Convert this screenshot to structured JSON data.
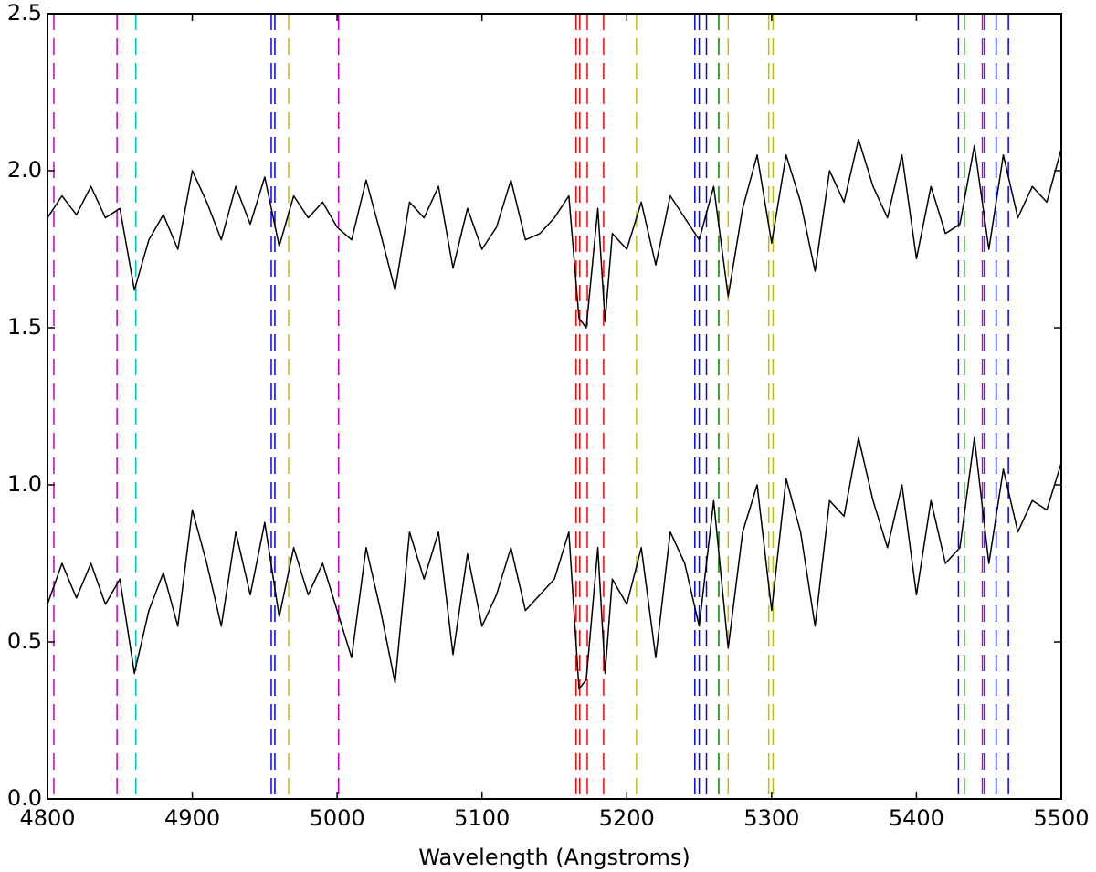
{
  "chart_data": {
    "type": "line",
    "xlabel": "Wavelength (Angstroms)",
    "xlim": [
      4800,
      5500
    ],
    "xticks": [
      4800,
      4900,
      5000,
      5100,
      5200,
      5300,
      5400,
      5500
    ],
    "ylim": [
      0,
      2.5
    ],
    "yticks": [
      {
        "value": 0,
        "label": "0.0"
      },
      0.5,
      {
        "value": 1,
        "label": "1.0"
      },
      1.5,
      {
        "value": 2,
        "label": "2.0"
      },
      2.5
    ],
    "x": [
      4800,
      4810,
      4820,
      4830,
      4840,
      4850,
      4860,
      4870,
      4880,
      4890,
      4900,
      4910,
      4920,
      4930,
      4940,
      4950,
      4960,
      4970,
      4980,
      4990,
      5000,
      5010,
      5020,
      5030,
      5040,
      5050,
      5060,
      5070,
      5080,
      5090,
      5100,
      5110,
      5120,
      5130,
      5140,
      5150,
      5160,
      5167,
      5172,
      5180,
      5185,
      5190,
      5200,
      5210,
      5220,
      5230,
      5240,
      5250,
      5260,
      5270,
      5280,
      5290,
      5300,
      5310,
      5320,
      5330,
      5340,
      5350,
      5360,
      5370,
      5380,
      5390,
      5400,
      5410,
      5420,
      5430,
      5440,
      5450,
      5460,
      5470,
      5480,
      5490,
      5500
    ],
    "series": [
      {
        "color": "#000000",
        "values": [
          1.85,
          1.92,
          1.86,
          1.95,
          1.85,
          1.88,
          1.62,
          1.78,
          1.86,
          1.75,
          2.0,
          1.9,
          1.78,
          1.95,
          1.83,
          1.98,
          1.76,
          1.92,
          1.85,
          1.9,
          1.82,
          1.78,
          1.97,
          1.8,
          1.62,
          1.9,
          1.85,
          1.95,
          1.69,
          1.88,
          1.75,
          1.82,
          1.97,
          1.78,
          1.8,
          1.85,
          1.92,
          1.53,
          1.5,
          1.88,
          1.52,
          1.8,
          1.75,
          1.9,
          1.7,
          1.92,
          1.85,
          1.78,
          1.95,
          1.6,
          1.88,
          2.05,
          1.77,
          2.05,
          1.9,
          1.68,
          2.0,
          1.9,
          2.1,
          1.95,
          1.85,
          2.05,
          1.72,
          1.95,
          1.8,
          1.83,
          2.08,
          1.75,
          2.05,
          1.85,
          1.95,
          1.9,
          2.07
        ]
      },
      {
        "color": "#000000",
        "values": [
          0.62,
          0.75,
          0.64,
          0.75,
          0.62,
          0.7,
          0.4,
          0.6,
          0.72,
          0.55,
          0.92,
          0.75,
          0.55,
          0.85,
          0.65,
          0.88,
          0.58,
          0.8,
          0.65,
          0.75,
          0.6,
          0.45,
          0.8,
          0.6,
          0.37,
          0.85,
          0.7,
          0.85,
          0.46,
          0.78,
          0.55,
          0.65,
          0.8,
          0.6,
          0.65,
          0.7,
          0.85,
          0.35,
          0.38,
          0.8,
          0.4,
          0.7,
          0.62,
          0.8,
          0.45,
          0.85,
          0.75,
          0.55,
          0.95,
          0.48,
          0.85,
          1.0,
          0.6,
          1.02,
          0.85,
          0.55,
          0.95,
          0.9,
          1.15,
          0.95,
          0.8,
          1.0,
          0.65,
          0.95,
          0.75,
          0.8,
          1.15,
          0.75,
          1.05,
          0.85,
          0.95,
          0.92,
          1.07
        ]
      }
    ],
    "vlines": [
      {
        "x": 4804.4,
        "color": "#bf00bf"
      },
      {
        "x": 4848,
        "color": "#bf00bf"
      },
      {
        "x": 4861,
        "color": "#00bfbf"
      },
      {
        "x": 4954.5,
        "color": "#0000ff"
      },
      {
        "x": 4957,
        "color": "#0000ff"
      },
      {
        "x": 4966.5,
        "color": "#bfbf00"
      },
      {
        "x": 5001,
        "color": "#bf00bf"
      },
      {
        "x": 5165,
        "color": "#ff0000"
      },
      {
        "x": 5167.5,
        "color": "#ff0000"
      },
      {
        "x": 5172.7,
        "color": "#ff0000"
      },
      {
        "x": 5184,
        "color": "#ff0000"
      },
      {
        "x": 5206.7,
        "color": "#bfbf00"
      },
      {
        "x": 5247,
        "color": "#0000ff"
      },
      {
        "x": 5250,
        "color": "#0000ff"
      },
      {
        "x": 5255,
        "color": "#0000ff"
      },
      {
        "x": 5263.5,
        "color": "#008000"
      },
      {
        "x": 5270,
        "color": "#bfbf00"
      },
      {
        "x": 5298,
        "color": "#bfbf00"
      },
      {
        "x": 5301,
        "color": "#bfbf00"
      },
      {
        "x": 5429,
        "color": "#0000ff"
      },
      {
        "x": 5433,
        "color": "#008000"
      },
      {
        "x": 5445.5,
        "color": "#bf00bf"
      },
      {
        "x": 5447,
        "color": "#0000ff"
      },
      {
        "x": 5455,
        "color": "#0000ff"
      },
      {
        "x": 5463.5,
        "color": "#0000ff"
      }
    ]
  }
}
